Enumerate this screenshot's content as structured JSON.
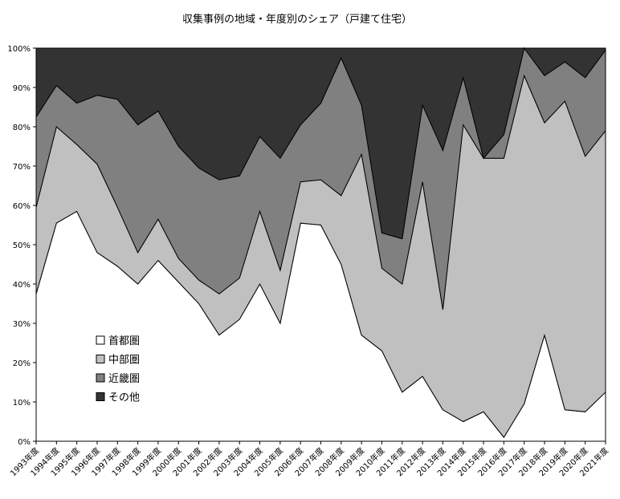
{
  "chart_data": {
    "type": "area",
    "stacked": true,
    "title": "収集事例の地域・年度別のシェア（戸建て住宅）",
    "categories": [
      "1993年度",
      "1994年度",
      "1995年度",
      "1996年度",
      "1997年度",
      "1998年度",
      "1999年度",
      "2000年度",
      "2001年度",
      "2002年度",
      "2003年度",
      "2004年度",
      "2005年度",
      "2006年度",
      "2007年度",
      "2008年度",
      "2009年度",
      "2010年度",
      "2011年度",
      "2012年度",
      "2013年度",
      "2014年度",
      "2015年度",
      "2016年度",
      "2017年度",
      "2018年度",
      "2019年度",
      "2020年度",
      "2021年度"
    ],
    "y_ticks": [
      "0%",
      "10%",
      "20%",
      "30%",
      "40%",
      "50%",
      "60%",
      "70%",
      "80%",
      "90%",
      "100%"
    ],
    "ylim": [
      0,
      100
    ],
    "legend_position": "inside-left",
    "series": [
      {
        "name": "首都圏",
        "color": "#ffffff",
        "values": [
          37.5,
          55.5,
          58.5,
          48,
          44.5,
          40,
          46,
          40.5,
          35,
          27,
          31,
          40,
          30,
          55.5,
          55,
          45,
          27,
          23,
          12.5,
          16.5,
          8,
          5,
          7.5,
          1,
          9.5,
          27,
          8,
          7.5,
          12.5
        ]
      },
      {
        "name": "中部圏",
        "color": "#c0c0c0",
        "values": [
          22,
          24.5,
          17,
          22.5,
          15,
          8,
          10.5,
          6,
          6,
          10.5,
          10.5,
          18.5,
          13.5,
          10.5,
          11.5,
          17.5,
          46,
          21,
          27.5,
          49.5,
          25.5,
          75.5,
          64.5,
          71,
          83.5,
          54,
          78.5,
          65,
          66.5
        ]
      },
      {
        "name": "近畿圏",
        "color": "#808080",
        "values": [
          23,
          10.5,
          10.5,
          17.5,
          27.5,
          32.5,
          27.5,
          28.5,
          28.5,
          29,
          26,
          19,
          28.5,
          14.5,
          19.5,
          35,
          12.5,
          9,
          11.5,
          19.5,
          40.5,
          12,
          0,
          6,
          7,
          12,
          10,
          20,
          20.5
        ]
      },
      {
        "name": "その他",
        "color": "#333333",
        "values": [
          17.5,
          9.5,
          14,
          12,
          13,
          19.5,
          16,
          25,
          30.5,
          33.5,
          32.5,
          22.5,
          28,
          19.5,
          14,
          2.5,
          14.5,
          47,
          48.5,
          14.5,
          26,
          7.5,
          28,
          22,
          0,
          7,
          3.5,
          7.5,
          0.5
        ]
      }
    ]
  }
}
